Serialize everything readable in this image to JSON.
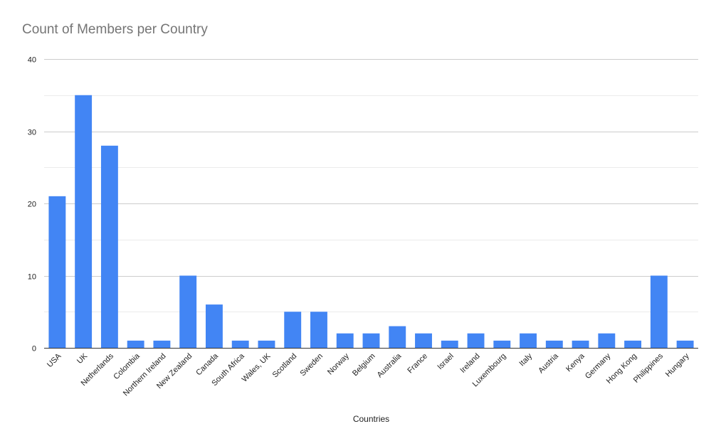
{
  "chart_data": {
    "type": "bar",
    "title": "Count of Members per Country",
    "xlabel": "Countries",
    "ylabel": "",
    "ylim": [
      0,
      40
    ],
    "yticks": [
      0,
      10,
      20,
      30,
      40
    ],
    "minor_grid": true,
    "legend": "none",
    "bar_color": "#4285f4",
    "categories": [
      "USA",
      "UK",
      "Netherlands",
      "Colombia",
      "Northern Ireland",
      "New Zealand",
      "Canada",
      "South Africa",
      "Wales, UK",
      "Scotland",
      "Sweden",
      "Norway",
      "Belgium",
      "Australia",
      "France",
      "Israel",
      "Ireland",
      "Luxembourg",
      "Italy",
      "Austria",
      "Kenya",
      "Germany",
      "Hong Kong",
      "Philippines",
      "Hungary"
    ],
    "values": [
      21,
      35,
      28,
      1,
      1,
      10,
      6,
      1,
      1,
      5,
      5,
      2,
      2,
      3,
      2,
      1,
      2,
      1,
      2,
      1,
      1,
      2,
      1,
      10,
      1
    ]
  }
}
